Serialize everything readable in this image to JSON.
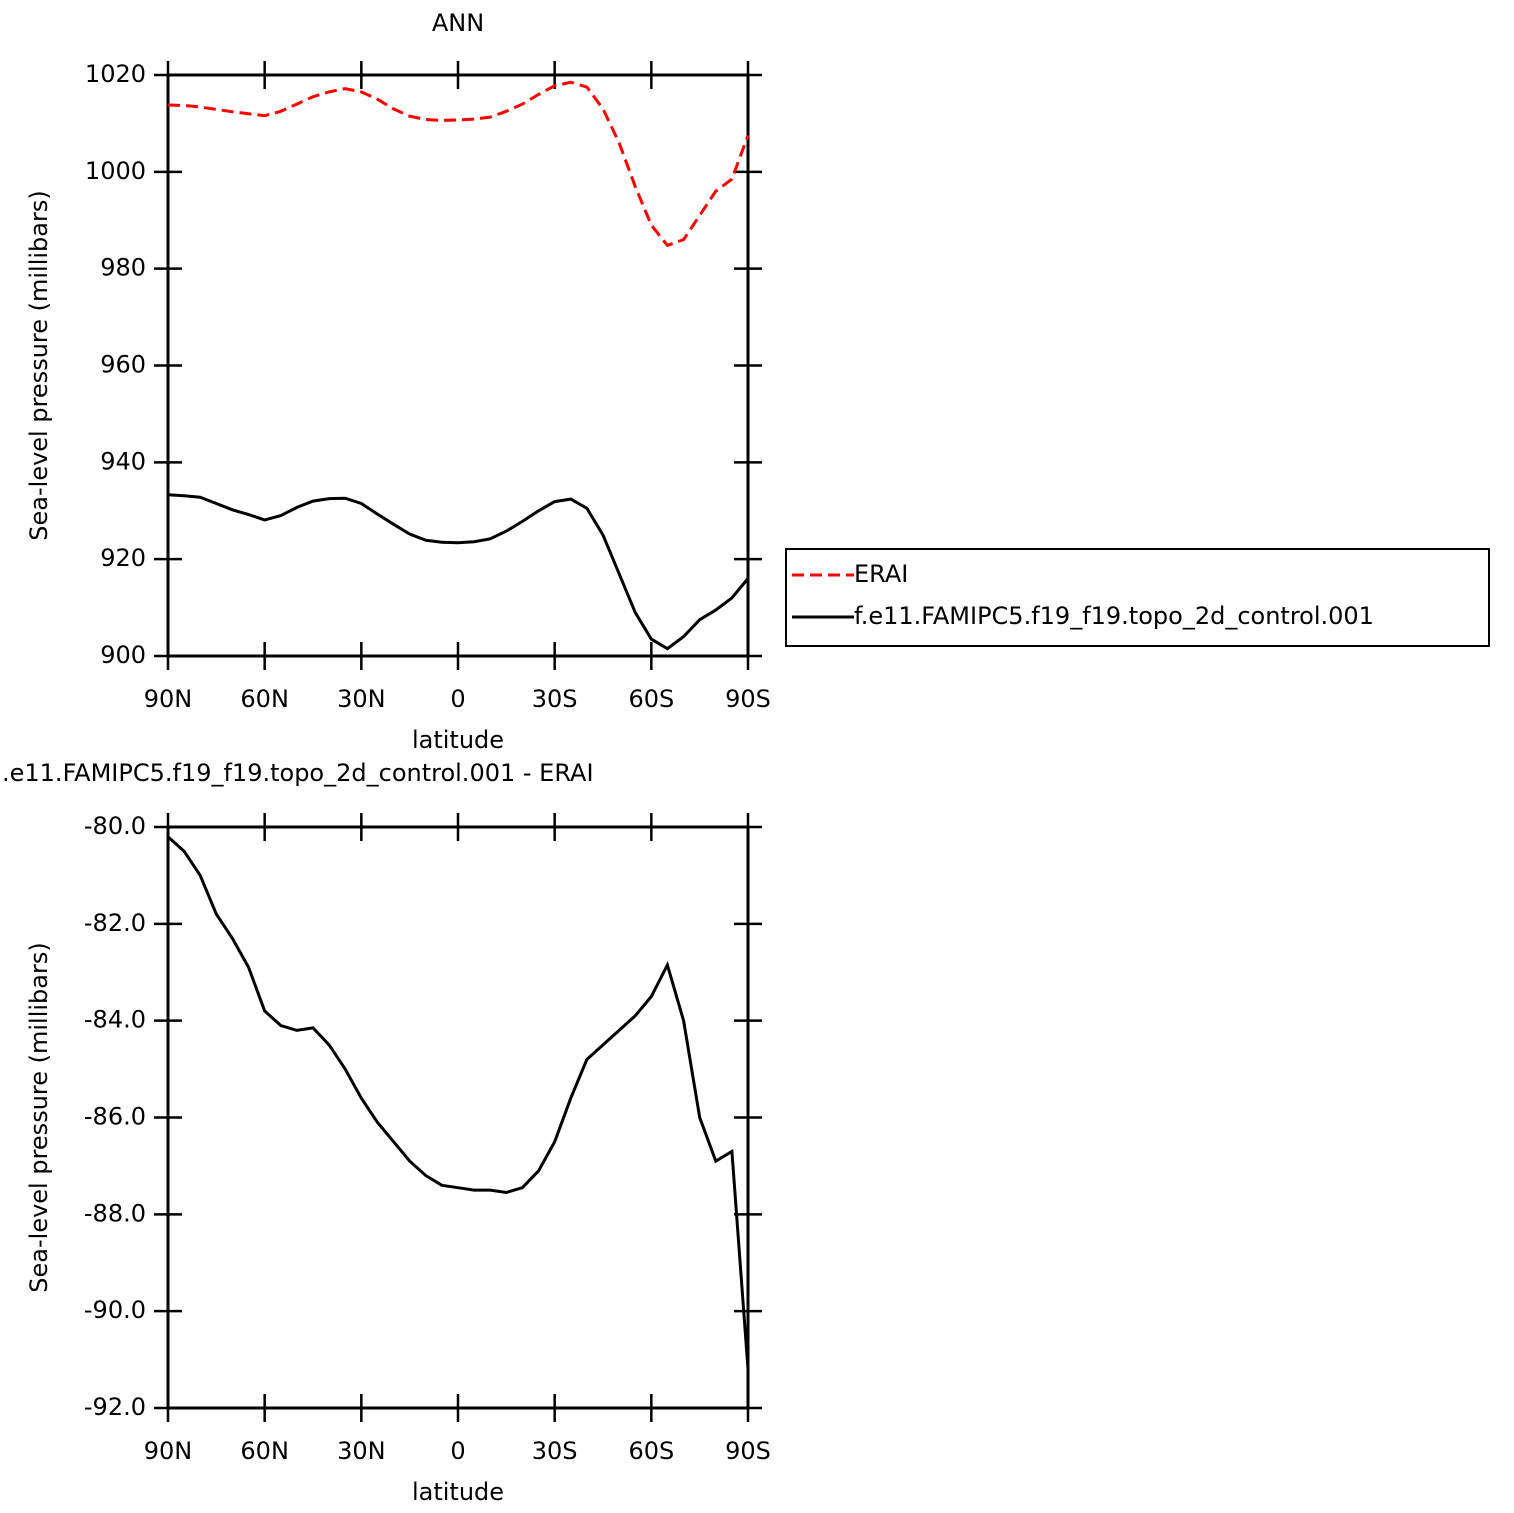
{
  "chart_data": [
    {
      "type": "line",
      "title": "ANN",
      "x_label": "latitude",
      "y_label": "Sea-level pressure (millibars)",
      "x": [
        90,
        85,
        80,
        75,
        70,
        65,
        60,
        55,
        50,
        45,
        40,
        35,
        30,
        25,
        20,
        15,
        10,
        5,
        0,
        -5,
        -10,
        -15,
        -20,
        -25,
        -30,
        -35,
        -40,
        -45,
        -50,
        -55,
        -60,
        -65,
        -70,
        -75,
        -80,
        -85,
        -90
      ],
      "xlim": [
        90,
        -90
      ],
      "xticks": [
        {
          "value": 90,
          "label": "90N"
        },
        {
          "value": 60,
          "label": "60N"
        },
        {
          "value": 30,
          "label": "30N"
        },
        0,
        {
          "value": -30,
          "label": "30S"
        },
        {
          "value": -60,
          "label": "60S"
        },
        {
          "value": -90,
          "label": "90S"
        }
      ],
      "ylim": [
        900,
        1020
      ],
      "yticks": [
        900,
        920,
        940,
        960,
        980,
        1000,
        1020
      ],
      "legend": "right",
      "series": [
        {
          "name": "ERAI",
          "color": "#ff0000",
          "dash": true,
          "values": [
            1013.8,
            1013.7,
            1013.4,
            1012.9,
            1012.4,
            1012.0,
            1011.6,
            1012.5,
            1014.0,
            1015.5,
            1016.5,
            1017.2,
            1016.5,
            1015.0,
            1013.0,
            1011.5,
            1010.8,
            1010.6,
            1010.7,
            1010.9,
            1011.3,
            1012.5,
            1014.0,
            1016.0,
            1017.8,
            1018.5,
            1017.5,
            1013.0,
            1006.0,
            997.0,
            989.0,
            984.8,
            986.0,
            991.0,
            996.0,
            998.5,
            1007.5
          ]
        },
        {
          "name": "f.e11.FAMIPC5.f19_f19.topo_2d_control.001",
          "color": "#000000",
          "dash": false,
          "values": [
            933.3,
            933.1,
            932.8,
            931.5,
            930.2,
            929.2,
            928.1,
            929.0,
            930.7,
            932.0,
            932.5,
            932.6,
            931.5,
            929.3,
            927.2,
            925.2,
            923.9,
            923.5,
            923.4,
            923.6,
            924.2,
            925.8,
            927.8,
            930.0,
            931.9,
            932.4,
            930.5,
            925.0,
            917.0,
            909.0,
            903.5,
            901.5,
            904.0,
            907.5,
            909.5,
            912.0,
            916.0
          ]
        }
      ]
    },
    {
      "type": "line",
      "title": ".e11.FAMIPC5.f19_f19.topo_2d_control.001  -  ERAI",
      "x_label": "latitude",
      "y_label": "Sea-level pressure (millibars)",
      "x": [
        90,
        85,
        80,
        75,
        70,
        65,
        60,
        55,
        50,
        45,
        40,
        35,
        30,
        25,
        20,
        15,
        10,
        5,
        0,
        -5,
        -10,
        -15,
        -20,
        -25,
        -30,
        -35,
        -40,
        -45,
        -50,
        -55,
        -60,
        -65,
        -70,
        -75,
        -80,
        -85,
        -90
      ],
      "xlim": [
        90,
        -90
      ],
      "xticks": [
        {
          "value": 90,
          "label": "90N"
        },
        {
          "value": 60,
          "label": "60N"
        },
        {
          "value": 30,
          "label": "30N"
        },
        0,
        {
          "value": -30,
          "label": "30S"
        },
        {
          "value": -60,
          "label": "60S"
        },
        {
          "value": -90,
          "label": "90S"
        }
      ],
      "ylim": [
        -92,
        -80
      ],
      "yticks": [
        {
          "value": -92,
          "label": "-92.0"
        },
        {
          "value": -90,
          "label": "-90.0"
        },
        {
          "value": -88,
          "label": "-88.0"
        },
        {
          "value": -86,
          "label": "-86.0"
        },
        {
          "value": -84,
          "label": "-84.0"
        },
        {
          "value": -82,
          "label": "-82.0"
        },
        {
          "value": -80,
          "label": "-80.0"
        }
      ],
      "color": "#000000",
      "values": [
        -80.2,
        -80.5,
        -81.0,
        -81.8,
        -82.3,
        -82.9,
        -83.8,
        -84.1,
        -84.2,
        -84.15,
        -84.5,
        -85.0,
        -85.6,
        -86.1,
        -86.5,
        -86.9,
        -87.2,
        -87.4,
        -87.45,
        -87.5,
        -87.5,
        -87.55,
        -87.45,
        -87.1,
        -86.5,
        -85.6,
        -84.8,
        -84.5,
        -84.2,
        -83.9,
        -83.5,
        -82.85,
        -84.0,
        -86.0,
        -86.9,
        -86.7,
        -91.2
      ]
    }
  ]
}
